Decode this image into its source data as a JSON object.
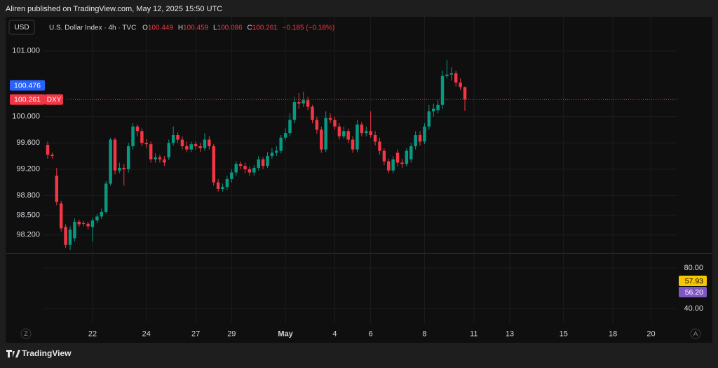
{
  "attribution": "Aliren published on TradingView.com, May 12, 2025 15:50 UTC",
  "brand": "TradingView",
  "scale_buttons": [
    "Z",
    "A"
  ],
  "chart_data": {
    "type": "candlestick",
    "currency": "USD",
    "symbol": "U.S. Dollar Index · 4h · TVC",
    "ohlc_prefixes": [
      "O",
      "H",
      "L",
      "C"
    ],
    "change_label": "−0.185 (−0.18%)",
    "up_color": "#089981",
    "down_color": "#f23645",
    "grid": true,
    "open": [
      99.57,
      99.42,
      99.1,
      98.68,
      98.32,
      98.05,
      98.15,
      98.4,
      98.38,
      98.37,
      98.32,
      98.42,
      98.48,
      98.55,
      98.98,
      99.65,
      99.18,
      99.22,
      99.2,
      99.55,
      99.85,
      99.78,
      99.6,
      99.58,
      99.35,
      99.38,
      99.35,
      99.38,
      99.6,
      99.72,
      99.65,
      99.55,
      99.5,
      99.58,
      99.55,
      99.52,
      99.65,
      99.55,
      99.0,
      98.9,
      98.93,
      99.05,
      99.15,
      99.28,
      99.25,
      99.2,
      99.15,
      99.22,
      99.35,
      99.25,
      99.4,
      99.45,
      99.48,
      99.68,
      99.75,
      99.95,
      100.22,
      100.2,
      100.25,
      100.15,
      99.95,
      99.8,
      99.5,
      99.98,
      99.95,
      99.85,
      99.7,
      99.78,
      99.65,
      99.5,
      99.88,
      99.75,
      99.78,
      99.72,
      99.62,
      99.48,
      99.32,
      99.18,
      99.45,
      99.3,
      99.28,
      99.35,
      99.55,
      99.72,
      99.62,
      99.85,
      100.08,
      100.1,
      100.18,
      100.62,
      100.64,
      100.66,
      100.52,
      100.449
    ],
    "high": [
      99.62,
      99.45,
      99.22,
      98.72,
      98.36,
      98.33,
      98.45,
      98.43,
      98.41,
      98.4,
      98.46,
      98.52,
      98.6,
      99.02,
      99.68,
      99.68,
      99.3,
      99.28,
      99.6,
      99.9,
      99.88,
      99.82,
      99.66,
      99.62,
      99.44,
      99.42,
      99.4,
      99.65,
      99.85,
      99.76,
      99.7,
      99.62,
      99.62,
      99.62,
      99.6,
      99.75,
      99.7,
      99.58,
      99.05,
      98.98,
      99.1,
      99.2,
      99.32,
      99.32,
      99.3,
      99.24,
      99.26,
      99.4,
      99.38,
      99.46,
      99.52,
      99.55,
      99.72,
      99.82,
      100.05,
      100.3,
      100.36,
      100.38,
      100.3,
      100.18,
      100.0,
      99.85,
      100.08,
      100.05,
      100.0,
      99.9,
      99.85,
      99.82,
      99.7,
      99.95,
      99.92,
      99.85,
      100.08,
      99.78,
      99.68,
      99.52,
      99.36,
      99.4,
      99.5,
      99.36,
      99.52,
      99.6,
      99.78,
      99.78,
      99.9,
      100.18,
      100.2,
      100.25,
      100.7,
      100.86,
      100.75,
      100.7,
      100.58,
      100.459
    ],
    "low": [
      99.36,
      99.36,
      98.65,
      98.25,
      98.0,
      97.97,
      98.1,
      98.32,
      98.33,
      98.28,
      98.1,
      98.38,
      98.44,
      98.52,
      98.95,
      99.12,
      99.14,
      98.95,
      99.15,
      99.5,
      99.7,
      99.55,
      99.52,
      99.3,
      99.3,
      99.3,
      99.25,
      99.34,
      99.56,
      99.6,
      99.5,
      99.46,
      99.46,
      99.5,
      99.46,
      99.48,
      99.5,
      98.95,
      98.86,
      98.86,
      98.88,
      99.0,
      99.1,
      99.2,
      99.14,
      99.1,
      99.1,
      99.18,
      99.2,
      99.22,
      99.36,
      99.4,
      99.44,
      99.64,
      99.7,
      99.9,
      100.12,
      100.15,
      100.1,
      99.9,
      99.74,
      99.45,
      99.46,
      99.9,
      99.8,
      99.65,
      99.66,
      99.6,
      99.45,
      99.46,
      99.7,
      99.7,
      99.68,
      99.56,
      99.42,
      99.26,
      99.14,
      99.14,
      99.24,
      99.22,
      99.24,
      99.3,
      99.5,
      99.56,
      99.58,
      99.8,
      100.0,
      100.05,
      100.12,
      100.58,
      100.55,
      100.46,
      100.4,
      100.086
    ],
    "close": [
      99.42,
      99.4,
      98.7,
      98.3,
      98.05,
      98.28,
      98.4,
      98.36,
      98.37,
      98.33,
      98.42,
      98.48,
      98.55,
      98.98,
      99.65,
      99.18,
      99.22,
      99.2,
      99.55,
      99.85,
      99.78,
      99.6,
      99.58,
      99.35,
      99.38,
      99.35,
      99.3,
      99.6,
      99.72,
      99.65,
      99.55,
      99.5,
      99.58,
      99.55,
      99.52,
      99.65,
      99.55,
      99.0,
      98.9,
      98.93,
      99.05,
      99.15,
      99.28,
      99.25,
      99.2,
      99.15,
      99.22,
      99.35,
      99.25,
      99.4,
      99.45,
      99.48,
      99.68,
      99.75,
      99.95,
      100.22,
      100.2,
      100.25,
      100.15,
      99.95,
      99.8,
      99.5,
      99.98,
      99.95,
      99.85,
      99.7,
      99.78,
      99.65,
      99.5,
      99.88,
      99.75,
      99.78,
      99.72,
      99.62,
      99.48,
      99.32,
      99.18,
      99.35,
      99.3,
      99.28,
      99.48,
      99.55,
      99.72,
      99.62,
      99.85,
      100.08,
      100.12,
      100.18,
      100.62,
      100.64,
      100.66,
      100.52,
      100.45,
      100.261
    ],
    "xlim": [
      -0.94,
      140.2
    ],
    "xticks": [
      {
        "value": 10,
        "label": "22"
      },
      {
        "value": 22,
        "label": "24"
      },
      {
        "value": 33,
        "label": "27"
      },
      {
        "value": 41,
        "label": "29"
      },
      {
        "value": 53,
        "label": "May"
      },
      {
        "value": 64,
        "label": "4"
      },
      {
        "value": 72,
        "label": "6"
      },
      {
        "value": 84,
        "label": "8"
      },
      {
        "value": 95,
        "label": "11"
      },
      {
        "value": 103,
        "label": "13"
      },
      {
        "value": 115,
        "label": "15"
      },
      {
        "value": 126,
        "label": "18"
      },
      {
        "value": 134.5,
        "label": "20"
      }
    ],
    "ylim": [
      97.92,
      101.52
    ],
    "yticks": [
      {
        "value": 101,
        "label": "101.000"
      },
      {
        "value": 100,
        "label": "100.000"
      },
      {
        "value": 99.6,
        "label": "99.600"
      },
      {
        "value": 99.2,
        "label": "99.200"
      },
      {
        "value": 98.8,
        "label": "98.800"
      },
      {
        "value": 98.5,
        "label": "98.500"
      },
      {
        "value": 98.2,
        "label": "98.200"
      }
    ],
    "price_labels": [
      {
        "value": 100.476,
        "color": "#2962ff"
      },
      {
        "value": 100.261,
        "tag": "DXY",
        "color": "#f23645",
        "dotted_line": true
      }
    ],
    "indicator": {
      "ylim": [
        25.5,
        93.8
      ],
      "yticks": [
        {
          "value": 80,
          "label": "80.00"
        },
        {
          "value": 40,
          "label": "40.00"
        }
      ],
      "labels": [
        {
          "value": 57.93,
          "color": "#f7c600",
          "text_color": "#000000"
        },
        {
          "value": 56.2,
          "label": "56.20",
          "color": "#7e57c2",
          "text_color": "#ffffff"
        }
      ]
    }
  }
}
